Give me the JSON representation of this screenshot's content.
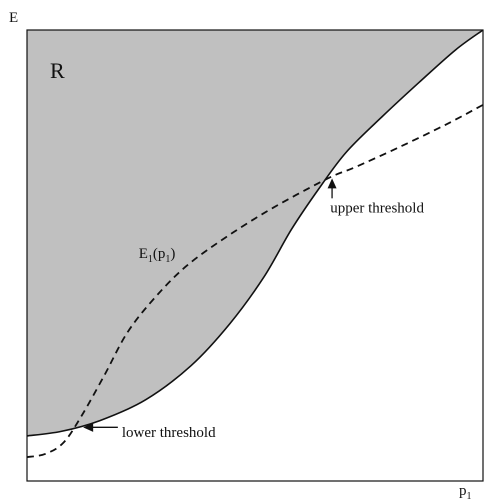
{
  "chart_data": {
    "type": "area",
    "title": "",
    "xlabel": "p",
    "xlabel_sub": "1",
    "ylabel": "E",
    "xlim": [
      0,
      100
    ],
    "ylim": [
      0,
      100
    ],
    "grid": false,
    "region": {
      "label": "R",
      "fill": "#c0c0c0",
      "boundary": [
        {
          "x": 0,
          "y": 10
        },
        {
          "x": 7.5,
          "y": 11
        },
        {
          "x": 16,
          "y": 13.4
        },
        {
          "x": 26,
          "y": 18
        },
        {
          "x": 36,
          "y": 25.6
        },
        {
          "x": 44.5,
          "y": 34.9
        },
        {
          "x": 52,
          "y": 45.3
        },
        {
          "x": 58,
          "y": 55.8
        },
        {
          "x": 64,
          "y": 64.8
        },
        {
          "x": 70,
          "y": 72.9
        },
        {
          "x": 78,
          "y": 80.9
        },
        {
          "x": 86,
          "y": 88.4
        },
        {
          "x": 94,
          "y": 95.6
        },
        {
          "x": 100,
          "y": 100
        }
      ]
    },
    "series": [
      {
        "name": "E1(p1)",
        "style": "dashed",
        "points": [
          {
            "x": 0,
            "y": 5.3
          },
          {
            "x": 4,
            "y": 6
          },
          {
            "x": 8,
            "y": 8.5
          },
          {
            "x": 12,
            "y": 14.5
          },
          {
            "x": 17,
            "y": 23.5
          },
          {
            "x": 22,
            "y": 32.9
          },
          {
            "x": 28,
            "y": 40.6
          },
          {
            "x": 35,
            "y": 47.7
          },
          {
            "x": 44,
            "y": 54.3
          },
          {
            "x": 54,
            "y": 60.6
          },
          {
            "x": 66,
            "y": 67.1
          },
          {
            "x": 72,
            "y": 69.6
          },
          {
            "x": 82,
            "y": 74.2
          },
          {
            "x": 92,
            "y": 79.1
          },
          {
            "x": 100,
            "y": 83.4
          }
        ]
      }
    ],
    "annotations": [
      {
        "text": "upper threshold",
        "point": {
          "x": 66.9,
          "y": 68
        },
        "label_anchor": {
          "x": 66.5,
          "y": 59.5
        },
        "arrow": "up"
      },
      {
        "text": "lower threshold",
        "point": {
          "x": 11,
          "y": 11.9
        },
        "label_anchor": {
          "x": 20.8,
          "y": 9.8
        },
        "arrow": "left"
      }
    ],
    "curve_label": {
      "text": "E",
      "sub": "1",
      "suffix_open": "(p",
      "suffix_sub": "1",
      "suffix_close": ")",
      "anchor": {
        "x": 24.5,
        "y": 49.5
      }
    }
  }
}
